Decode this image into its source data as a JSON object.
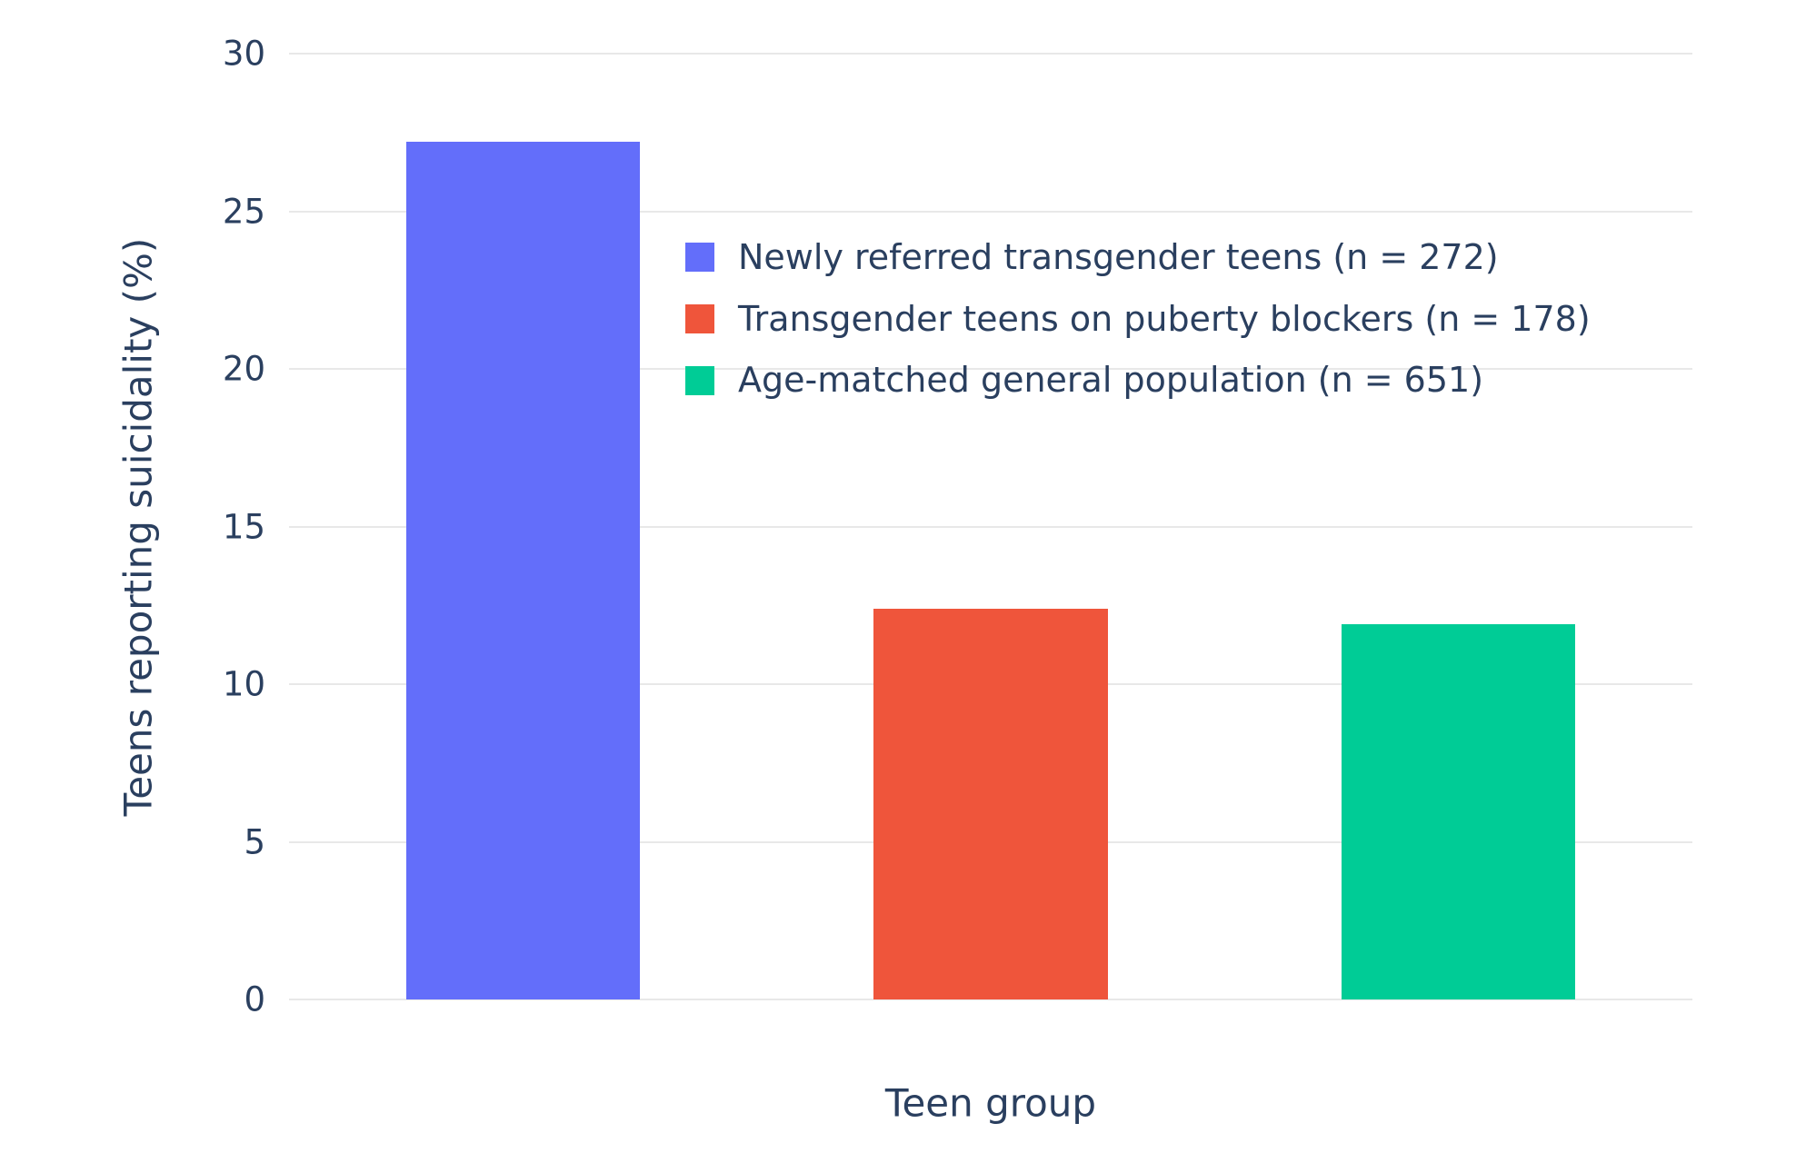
{
  "chart_data": {
    "type": "bar",
    "categories": [
      "Newly referred transgender teens (n = 272)",
      "Transgender teens on puberty blockers (n = 178)",
      "Age-matched general population (n = 651)"
    ],
    "values": [
      27.2,
      12.4,
      11.9
    ],
    "colors": [
      "#636EFA",
      "#EF553B",
      "#00CC96"
    ],
    "xlabel": "Teen group",
    "ylabel": "Teens reporting suicidality (%)",
    "ylim": [
      0,
      30
    ],
    "yticks": [
      0,
      5,
      10,
      15,
      20,
      25,
      30
    ],
    "grid": true,
    "legend_position": "inside-top",
    "background_color": "#ffffff",
    "gridline_color": "#e8e8e8",
    "text_color": "#2a3f5f"
  }
}
